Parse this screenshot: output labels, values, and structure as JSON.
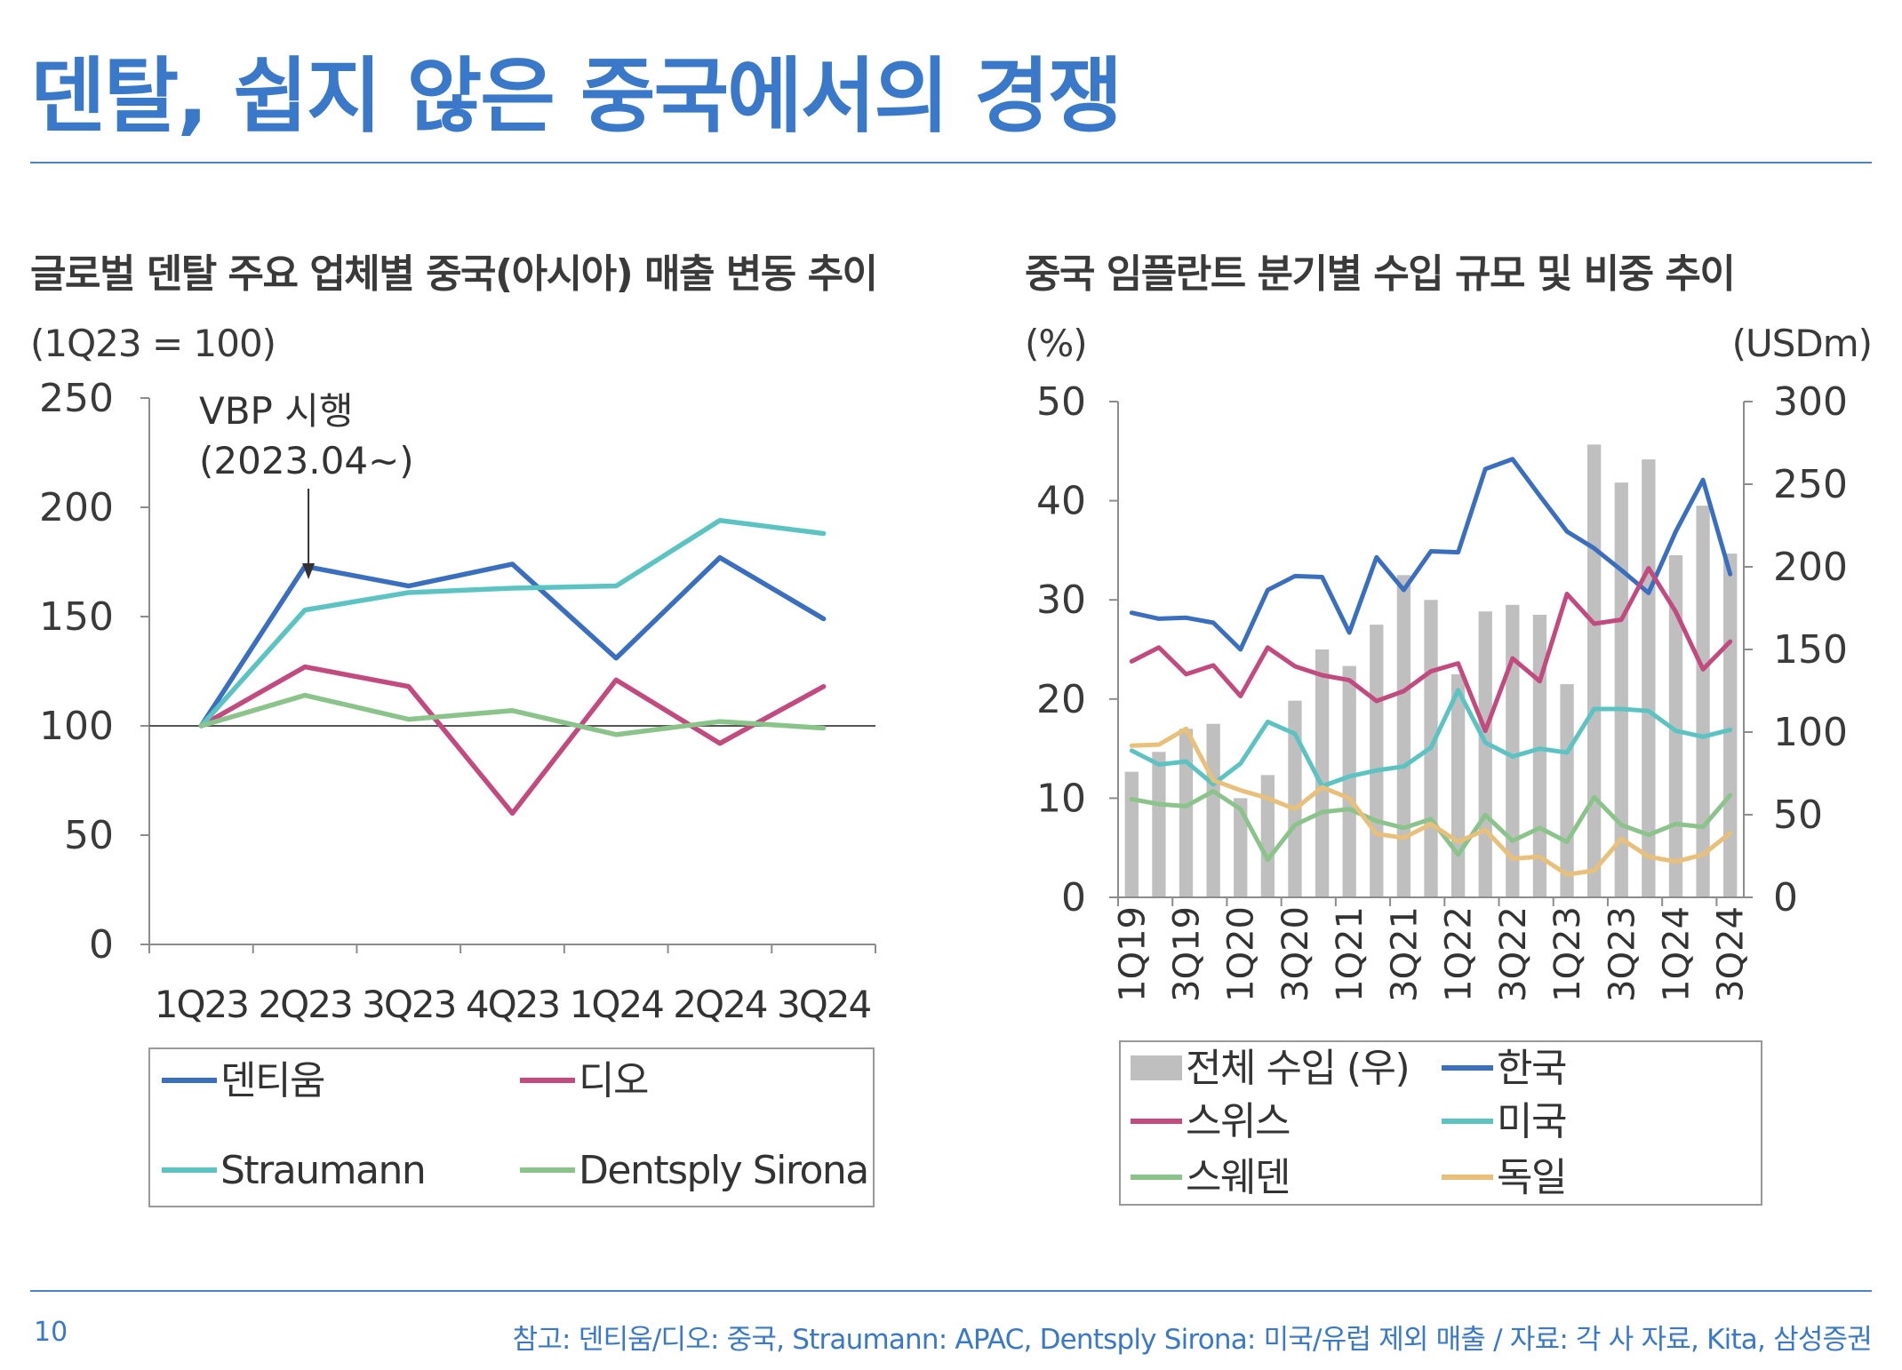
{
  "page": {
    "title": "덴탈, 쉽지 않은 중국에서의 경쟁",
    "page_number": "10",
    "footnote": "참고: 덴티움/디오: 중국, Straumann: APAC, Dentsply Sirona: 미국/유럽 제외 매출 / 자료: 각 사 자료, Kita, 삼성증권"
  },
  "chart_data": [
    {
      "type": "line",
      "title": "글로벌 덴탈 주요 업체별 중국(아시아) 매출 변동 추이",
      "ylabel": "(1Q23 = 100)",
      "ylim": [
        0,
        250
      ],
      "yticks": [
        0,
        50,
        100,
        150,
        200,
        250
      ],
      "categories": [
        "1Q23",
        "2Q23",
        "3Q23",
        "4Q23",
        "1Q24",
        "2Q24",
        "3Q24"
      ],
      "reference_line": 100,
      "annotation": {
        "line1": "VBP 시행",
        "line2": "(2023.04~)",
        "category": "2Q23"
      },
      "series": [
        {
          "name": "덴티움",
          "color": "#3a6fc0",
          "values": [
            100,
            173,
            164,
            174,
            131,
            177,
            149
          ]
        },
        {
          "name": "디오",
          "color": "#c24a7e",
          "values": [
            100,
            127,
            118,
            60,
            121,
            92,
            118
          ]
        },
        {
          "name": "Straumann",
          "color": "#5cc3c3",
          "values": [
            100,
            153,
            161,
            163,
            164,
            194,
            188
          ]
        },
        {
          "name": "Dentsply Sirona",
          "color": "#8bc48a",
          "values": [
            100,
            114,
            103,
            107,
            96,
            102,
            99
          ]
        }
      ],
      "legend_position": "bottom"
    },
    {
      "type": "bar+line",
      "title": "중국 임플란트 분기별 수입 규모 및 비중 추이",
      "left_unit": "(%)",
      "right_unit": "(USDm)",
      "left_ylim": [
        0,
        50
      ],
      "left_yticks": [
        0,
        10,
        20,
        30,
        40,
        50
      ],
      "right_ylim": [
        0,
        300
      ],
      "right_yticks": [
        0,
        50,
        100,
        150,
        200,
        250,
        300
      ],
      "x": [
        "1Q19",
        "2Q19",
        "3Q19",
        "4Q19",
        "1Q20",
        "2Q20",
        "3Q20",
        "4Q20",
        "1Q21",
        "2Q21",
        "3Q21",
        "4Q21",
        "1Q22",
        "2Q22",
        "3Q22",
        "4Q22",
        "1Q23",
        "2Q23",
        "3Q23",
        "4Q23",
        "1Q24",
        "2Q24",
        "3Q24"
      ],
      "x_tick_labels": [
        "1Q19",
        "3Q19",
        "1Q20",
        "3Q20",
        "1Q21",
        "3Q21",
        "1Q22",
        "3Q22",
        "1Q23",
        "3Q23",
        "1Q24",
        "3Q24"
      ],
      "bars": {
        "name": "전체 수입 (우)",
        "color": "#bfbfbf",
        "axis": "right",
        "values": [
          76,
          88,
          102,
          105,
          60,
          74,
          119,
          150,
          140,
          165,
          195,
          180,
          135,
          173,
          177,
          171,
          129,
          274,
          251,
          265,
          207,
          237,
          208
        ]
      },
      "series": [
        {
          "name": "한국",
          "color": "#3a6fc0",
          "values": [
            28.7,
            28.1,
            28.2,
            27.7,
            25.0,
            31.0,
            32.4,
            32.3,
            26.7,
            34.3,
            31.0,
            34.9,
            34.8,
            43.2,
            44.2,
            40.5,
            36.9,
            35.2,
            33.0,
            30.7,
            36.9,
            42.1,
            32.6
          ]
        },
        {
          "name": "스위스",
          "color": "#c24a7e",
          "values": [
            23.8,
            25.2,
            22.5,
            23.4,
            20.3,
            25.2,
            23.3,
            22.4,
            21.9,
            19.8,
            20.8,
            22.8,
            23.6,
            16.8,
            24.1,
            21.8,
            30.6,
            27.6,
            28.0,
            33.2,
            28.8,
            23.0,
            25.8
          ]
        },
        {
          "name": "미국",
          "color": "#5cc3c3",
          "values": [
            14.8,
            13.4,
            13.7,
            11.4,
            13.5,
            17.7,
            16.5,
            11.2,
            12.2,
            12.8,
            13.2,
            15.1,
            20.9,
            15.6,
            14.2,
            15.0,
            14.6,
            19.0,
            19.0,
            18.8,
            16.8,
            16.2,
            16.9
          ]
        },
        {
          "name": "스웨덴",
          "color": "#8bc48a",
          "values": [
            9.9,
            9.4,
            9.2,
            10.7,
            8.9,
            3.8,
            7.3,
            8.6,
            8.9,
            7.7,
            7.0,
            7.9,
            4.3,
            8.3,
            5.7,
            7.0,
            5.6,
            10.1,
            7.3,
            6.3,
            7.4,
            7.1,
            10.3
          ]
        },
        {
          "name": "독일",
          "color": "#e8c07a",
          "values": [
            15.3,
            15.4,
            17.0,
            11.8,
            10.8,
            10.0,
            8.9,
            11.1,
            10.0,
            6.4,
            6.0,
            7.4,
            5.6,
            6.8,
            3.9,
            4.1,
            2.3,
            2.7,
            5.9,
            4.1,
            3.6,
            4.3,
            6.5
          ]
        }
      ],
      "legend_position": "bottom"
    }
  ]
}
